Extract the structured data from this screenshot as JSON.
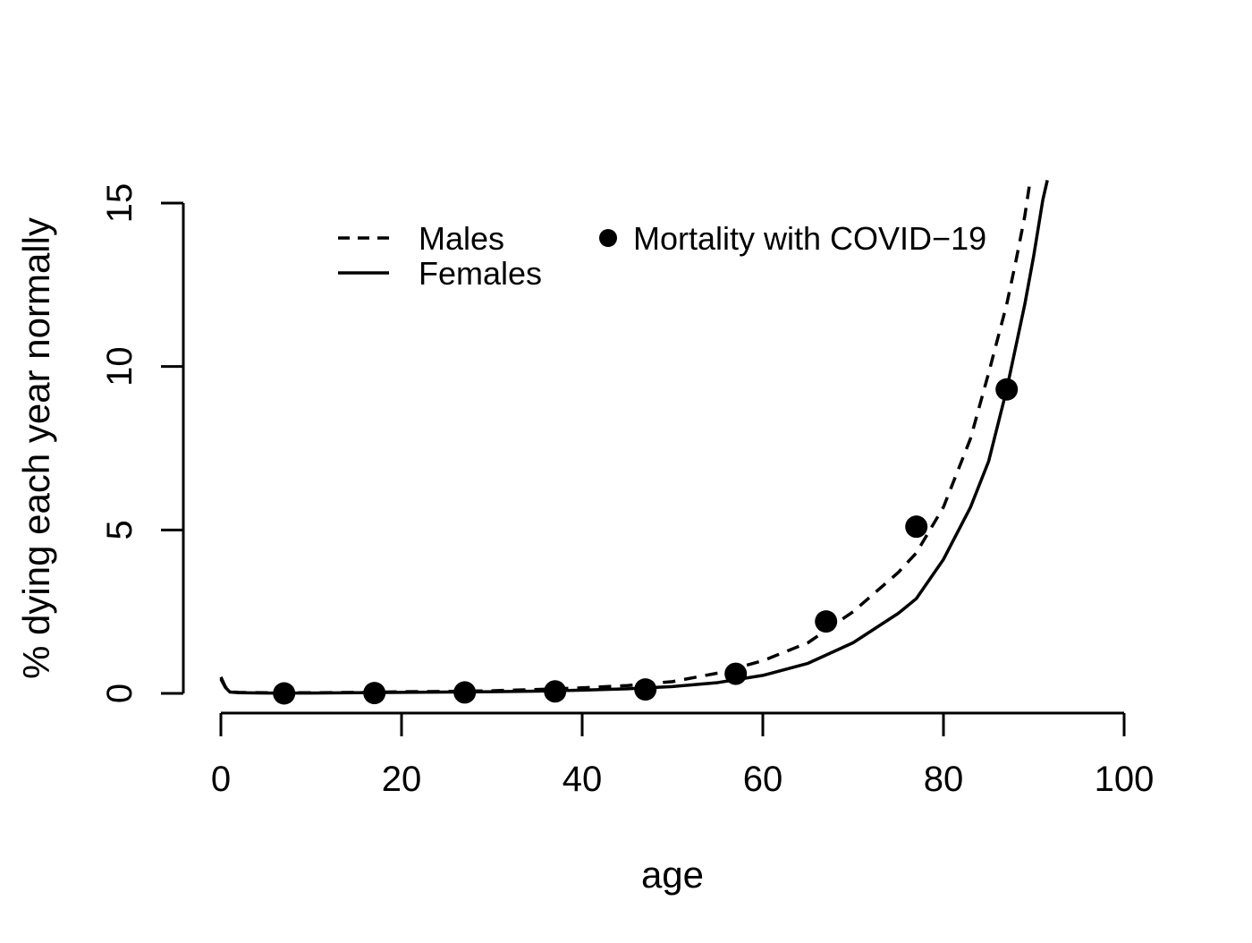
{
  "figure": {
    "background": "#ffffff",
    "foreground": "#000000"
  },
  "chart_data": {
    "type": "line",
    "title": "",
    "xlabel": "age",
    "ylabel": "% dying each year normally",
    "xlim": [
      0,
      100
    ],
    "ylim": [
      0,
      15
    ],
    "xticks": [
      0,
      20,
      40,
      60,
      80,
      100
    ],
    "yticks": [
      0,
      5,
      10,
      15
    ],
    "grid": false,
    "legend": {
      "position": "top-inside",
      "entries": [
        "Males",
        "Females",
        "Mortality with COVID−19"
      ]
    },
    "series": [
      {
        "name": "Males",
        "type": "line",
        "linestyle": "dashed",
        "color": "#000000",
        "x": [
          0,
          0.5,
          1,
          2,
          5,
          10,
          15,
          20,
          25,
          30,
          35,
          40,
          45,
          50,
          55,
          60,
          65,
          70,
          75,
          77,
          80,
          83,
          85,
          87,
          88,
          89,
          89.6
        ],
        "y": [
          0.5,
          0.2,
          0.05,
          0.03,
          0.02,
          0.02,
          0.03,
          0.05,
          0.06,
          0.08,
          0.12,
          0.17,
          0.24,
          0.36,
          0.62,
          1.0,
          1.55,
          2.5,
          3.7,
          4.3,
          5.7,
          7.8,
          9.8,
          11.9,
          13.2,
          14.6,
          15.7
        ]
      },
      {
        "name": "Females",
        "type": "line",
        "linestyle": "solid",
        "color": "#000000",
        "x": [
          0,
          0.5,
          1,
          2,
          5,
          10,
          15,
          20,
          25,
          30,
          35,
          40,
          45,
          50,
          55,
          60,
          65,
          70,
          75,
          77,
          80,
          83,
          85,
          87,
          89,
          90,
          91,
          91.5
        ],
        "y": [
          0.44,
          0.18,
          0.04,
          0.02,
          0.01,
          0.01,
          0.02,
          0.03,
          0.04,
          0.05,
          0.07,
          0.1,
          0.14,
          0.21,
          0.33,
          0.55,
          0.92,
          1.55,
          2.45,
          2.9,
          4.1,
          5.7,
          7.1,
          9.3,
          11.9,
          13.4,
          15.1,
          15.7
        ]
      },
      {
        "name": "Mortality with COVID−19",
        "type": "points",
        "marker": "filled-circle",
        "color": "#000000",
        "x": [
          7,
          17,
          27,
          37,
          47,
          57,
          67,
          77,
          87
        ],
        "y": [
          0.0,
          0.01,
          0.03,
          0.06,
          0.12,
          0.6,
          2.2,
          5.1,
          9.3
        ]
      }
    ]
  }
}
